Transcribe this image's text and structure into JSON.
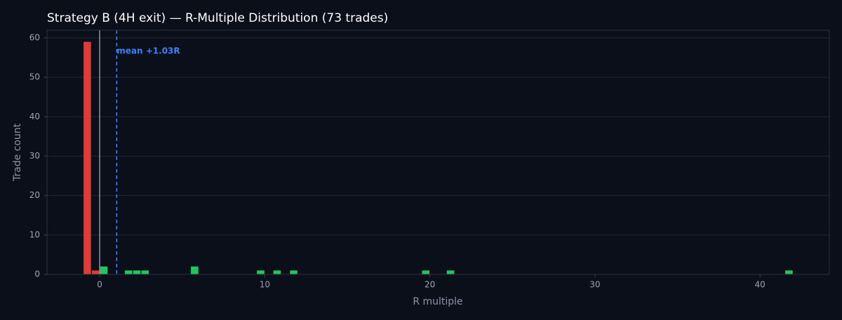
{
  "chart_data": {
    "type": "histogram",
    "title": "Strategy B (4H exit) — R-Multiple Distribution (73 trades)",
    "x_label": "R multiple",
    "y_label": "Trade count",
    "bins": [
      -1,
      -0.5,
      0,
      0.5,
      1,
      1.5,
      2,
      2.5,
      3,
      3.5,
      4,
      4.5,
      5,
      5.5,
      6,
      6.5,
      7,
      7.5,
      8,
      8.5,
      9,
      9.5,
      10,
      10.5,
      11,
      11.5,
      12,
      12.5,
      13,
      13.5,
      14,
      14.5,
      15,
      15.5,
      16,
      16.5,
      17,
      17.5,
      18,
      18.5,
      19,
      19.5,
      20,
      20.5,
      21,
      21.5,
      22,
      22.5,
      23,
      23.5,
      24,
      24.5,
      25,
      25.5,
      26,
      26.5,
      27,
      27.5,
      28,
      28.5,
      29,
      29.5,
      30,
      30.5,
      31,
      31.5,
      32,
      32.5,
      33,
      33.5,
      34,
      34.5,
      35,
      35.5,
      36,
      36.5,
      37,
      37.5,
      38,
      38.5,
      39,
      39.5,
      40,
      40.5,
      41,
      41.5,
      42
    ],
    "values": [
      59,
      1,
      2,
      0,
      0,
      1,
      1,
      1,
      0,
      0,
      0,
      0,
      0,
      2,
      0,
      0,
      0,
      0,
      0,
      0,
      0,
      1,
      0,
      1,
      0,
      1,
      0,
      0,
      0,
      0,
      0,
      0,
      0,
      0,
      0,
      0,
      0,
      0,
      0,
      0,
      0,
      1,
      0,
      0,
      1,
      0,
      0,
      0,
      0,
      0,
      0,
      0,
      0,
      0,
      0,
      0,
      0,
      0,
      0,
      0,
      0,
      0,
      0,
      0,
      0,
      0,
      0,
      0,
      0,
      0,
      0,
      0,
      0,
      0,
      0,
      0,
      0,
      0,
      0,
      0,
      0,
      0,
      0,
      0,
      0,
      1
    ],
    "color_negative": "#e53935",
    "color_positive": "#22c55e",
    "mean_line": 1.03,
    "mean_label": "mean +1.03R",
    "mean_color": "#3b82f6",
    "zero_line": true,
    "xlim": [
      -3.19,
      44.2
    ],
    "xticks": [
      0,
      10,
      20,
      30,
      40
    ],
    "ylim": [
      0,
      61.95
    ],
    "yticks": [
      0,
      10,
      20,
      30,
      40,
      50,
      60
    ],
    "grid": true
  }
}
